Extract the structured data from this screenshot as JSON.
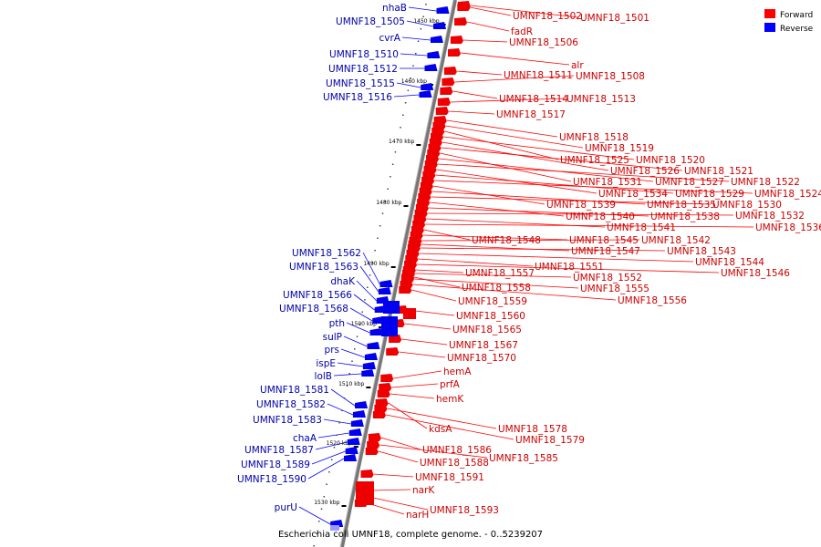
{
  "caption": "Escherichia coli UMNF18, complete genome. - 0..5239207",
  "legend": [
    {
      "label": "Forward",
      "color": "#ff0000"
    },
    {
      "label": "Reverse",
      "color": "#0000ff"
    }
  ],
  "kbp_labels": [
    "1450 kbp",
    "1460 kbp",
    "1470 kbp",
    "1480 kbp",
    "1490 kbp",
    "1500 kbp",
    "1510 kbp",
    "1520 kbp",
    "1530 kbp"
  ],
  "reverse_genes": [
    "nhaB",
    "UMNF18_1505",
    "cvrA",
    "UMNF18_1510",
    "UMNF18_1512",
    "UMNF18_1515",
    "UMNF18_1516",
    "UMNF18_1562",
    "UMNF18_1563",
    "dhaK",
    "UMNF18_1566",
    "UMNF18_1568",
    "pth",
    "sulP",
    "prs",
    "ispE",
    "lolB",
    "UMNF18_1581",
    "UMNF18_1582",
    "UMNF18_1583",
    "chaA",
    "UMNF18_1587",
    "UMNF18_1589",
    "UMNF18_1590",
    "purU"
  ],
  "forward_genes": [
    "UMNF18_1502",
    "UMNF18_1501",
    "fadR",
    "UMNF18_1506",
    "alr",
    "UMNF18_1511",
    "UMNF18_1508",
    "UMNF18_1514",
    "UMNF18_1513",
    "UMNF18_1517",
    "UMNF18_1518",
    "UMNF18_1519",
    "UMNF18_1525",
    "UMNF18_1520",
    "UMNF18_1526",
    "UMNF18_1521",
    "UMNF18_1531",
    "UMNF18_1527",
    "UMNF18_1522",
    "UMNF18_1534",
    "UMNF18_1529",
    "UMNF18_1524",
    "UMNF18_1539",
    "UMNF18_1535",
    "UMNF18_1530",
    "UMNF18_1540",
    "UMNF18_1538",
    "UMNF18_1532",
    "UMNF18_1541",
    "UMNF18_1536",
    "UMNF18_1548",
    "UMNF18_1545",
    "UMNF18_1542",
    "UMNF18_1547",
    "UMNF18_1543",
    "UMNF18_1544",
    "UMNF18_1551",
    "UMNF18_1546",
    "UMNF18_1557",
    "UMNF18_1552",
    "UMNF18_1558",
    "UMNF18_1555",
    "UMNF18_1556",
    "UMNF18_1559",
    "UMNF18_1560",
    "UMNF18_1565",
    "UMNF18_1567",
    "UMNF18_1570",
    "hemA",
    "prfA",
    "hemK",
    "kdsA",
    "UMNF18_1578",
    "UMNF18_1579",
    "UMNF18_1586",
    "UMNF18_1585",
    "UMNF18_1588",
    "UMNF18_1591",
    "narK",
    "UMNF18_1593",
    "narH"
  ]
}
